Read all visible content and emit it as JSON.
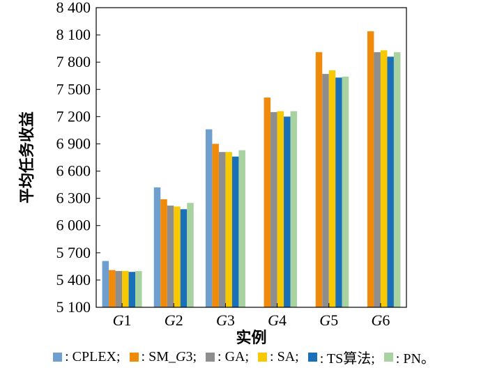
{
  "chart_data": {
    "type": "bar",
    "categories": [
      "G1",
      "G2",
      "G3",
      "G4",
      "G5",
      "G6"
    ],
    "category_labels": [
      {
        "italic": "G",
        "num": "1"
      },
      {
        "italic": "G",
        "num": "2"
      },
      {
        "italic": "G",
        "num": "3"
      },
      {
        "italic": "G",
        "num": "4"
      },
      {
        "italic": "G",
        "num": "5"
      },
      {
        "italic": "G",
        "num": "6"
      }
    ],
    "xlabel": "实例",
    "ylabel": "平均任务收益",
    "ylim": [
      5100,
      8400
    ],
    "yticks": [
      5100,
      5400,
      5700,
      6000,
      6300,
      6600,
      6900,
      7200,
      7500,
      7800,
      8100,
      8400
    ],
    "ytick_labels": [
      "5 100",
      "5 400",
      "5 700",
      "6 000",
      "6 300",
      "6 600",
      "6 900",
      "7 200",
      "7 500",
      "7 800",
      "8 100",
      "8 400"
    ],
    "grid": false,
    "legend_position": "bottom",
    "series": [
      {
        "name": "CPLEX",
        "color": "#6f9fcf",
        "values": [
          5610,
          6420,
          7060,
          null,
          null,
          null
        ]
      },
      {
        "name": "SM_G3",
        "color": "#f08a0a",
        "values": [
          5510,
          6290,
          6900,
          7410,
          7910,
          8140
        ]
      },
      {
        "name": "GA",
        "color": "#8e8e8e",
        "values": [
          5500,
          6220,
          6810,
          7250,
          7670,
          7910
        ]
      },
      {
        "name": "SA",
        "color": "#f8c800",
        "values": [
          5500,
          6210,
          6810,
          7260,
          7710,
          7930
        ]
      },
      {
        "name": "TS算法",
        "color": "#1a6fb9",
        "values": [
          5490,
          6180,
          6760,
          7200,
          7630,
          7860
        ]
      },
      {
        "name": "PN",
        "color": "#a8d3a0",
        "values": [
          5500,
          6250,
          6830,
          7260,
          7640,
          7910
        ]
      }
    ]
  },
  "legend": [
    {
      "text": ": CPLEX;",
      "color": "#6f9fcf"
    },
    {
      "text": ": SM_",
      "italic": "G",
      "suffix": "3;",
      "color": "#f08a0a"
    },
    {
      "text": ": GA;",
      "color": "#8e8e8e"
    },
    {
      "text": ": SA;",
      "color": "#f8c800"
    },
    {
      "text": ": TS算法;",
      "color": "#1a6fb9"
    },
    {
      "text": ": PN。",
      "color": "#a8d3a0"
    }
  ]
}
